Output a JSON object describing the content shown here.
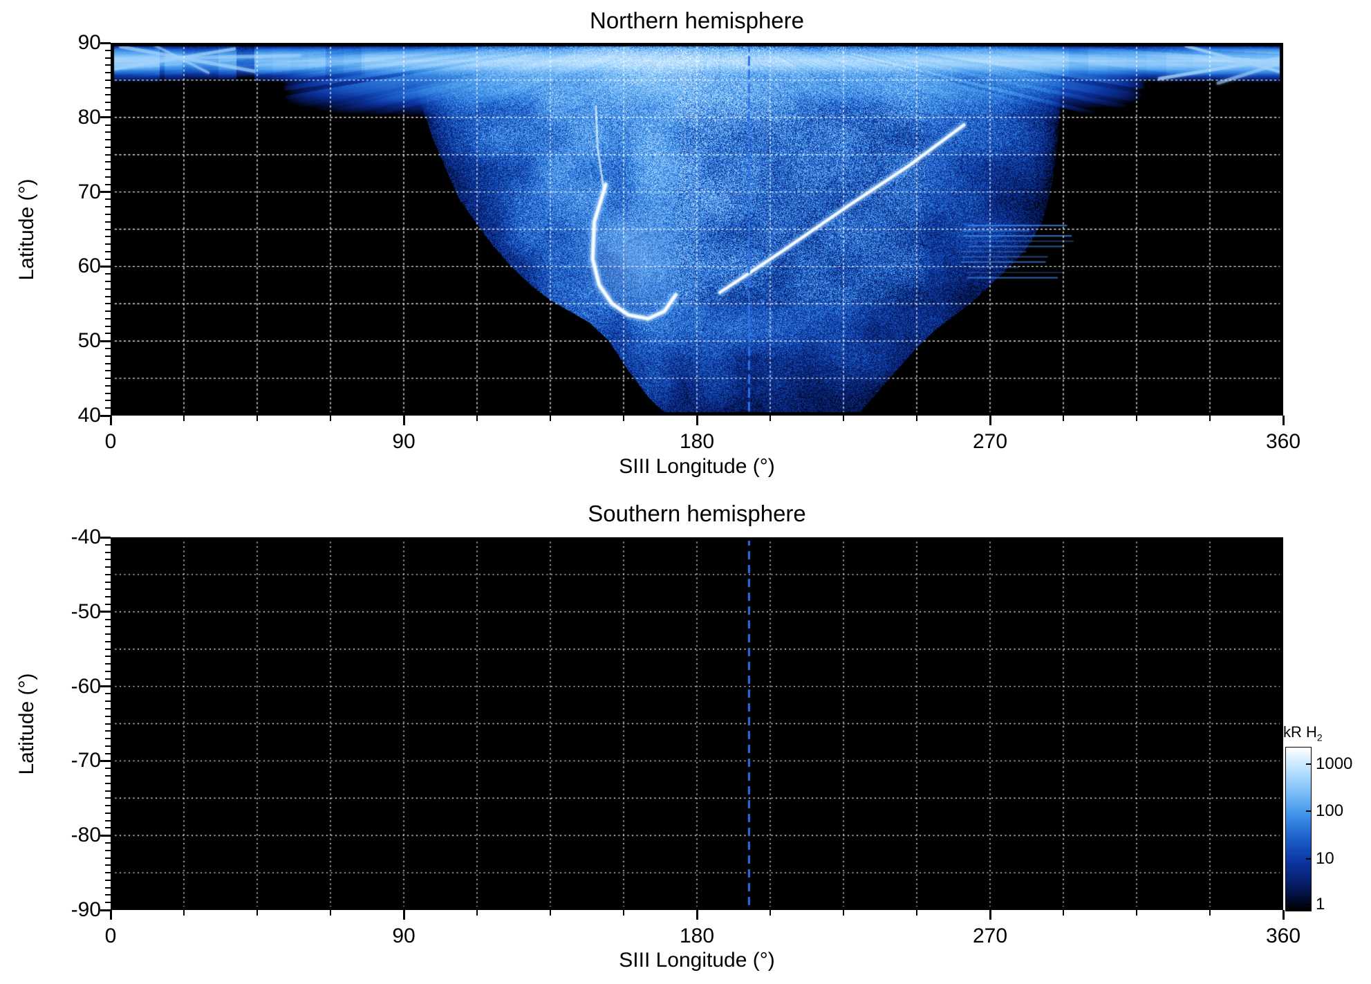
{
  "figure": {
    "panels": [
      {
        "id": "north",
        "title": "Northern hemisphere",
        "ylabel": "Latitude (°)",
        "xlabel": "SIII Longitude (°)",
        "yticks": [
          "90",
          "80",
          "70",
          "60",
          "50",
          "40"
        ],
        "xticks": [
          "0",
          "90",
          "180",
          "270",
          "360"
        ]
      },
      {
        "id": "south",
        "title": "Southern hemisphere",
        "ylabel": "Latitude (°)",
        "xlabel": "SIII Longitude (°)",
        "yticks": [
          "-40",
          "-50",
          "-60",
          "-70",
          "-80",
          "-90"
        ],
        "xticks": [
          "0",
          "90",
          "180",
          "270",
          "360"
        ]
      }
    ],
    "colorbar": {
      "label": "kR H",
      "label_subscript": "2",
      "tick_labels": [
        "1000",
        "100",
        "10",
        "1"
      ],
      "scale": "logarithmic",
      "range": [
        1,
        1000
      ],
      "gradient_colors": [
        "#ffffff",
        "#b9e0ff",
        "#79bdf7",
        "#3e90e8",
        "#1b5ec9",
        "#0c35a0",
        "#071f6e",
        "#030f3c",
        "#000000"
      ]
    }
  },
  "chart_data": [
    {
      "type": "heatmap",
      "title": "Northern hemisphere",
      "xlabel": "SIII Longitude (°)",
      "ylabel": "Latitude (°)",
      "xlim": [
        0,
        360
      ],
      "ylim": [
        40,
        90
      ],
      "xticks": [
        0,
        90,
        180,
        270,
        360
      ],
      "yticks": [
        90,
        80,
        70,
        60,
        50,
        40
      ],
      "grid": {
        "x_step_deg": 22.5,
        "y_step_deg": 5,
        "style": "dotted",
        "color": "#ffffff"
      },
      "meridian_line": {
        "longitude_deg": 196,
        "style": "dashed",
        "color": "#2e73e8"
      },
      "intensity_units": "kR H2",
      "intensity_scale": "log",
      "intensity_range_kR": [
        1,
        1000
      ],
      "features": {
        "description": "Diffuse speckled H2 auroral emission spanning ~95°–292° longitude from the pole down to ~40° latitude around 170°–230°; bright main oval arc near 148°–173° longitude at 53°–71° latitude; bright straight arc from (187°,57°) to (262°,79°); bright polar band at ~86°–89° latitude across all longitudes with fan-like streaks converging toward the pole near 187° longitude; faint horizontal streaks near 265°–298° longitude at 59°–65° latitude.",
        "lower_boundary": [
          [
            92,
            87
          ],
          [
            95,
            82
          ],
          [
            99,
            77
          ],
          [
            103,
            73
          ],
          [
            107,
            69
          ],
          [
            112,
            66
          ],
          [
            117,
            63
          ],
          [
            123,
            60
          ],
          [
            129,
            57.5
          ],
          [
            135,
            55.5
          ],
          [
            141,
            54
          ],
          [
            147,
            52.5
          ],
          [
            153,
            50
          ],
          [
            159,
            46
          ],
          [
            165,
            42.5
          ],
          [
            171,
            40
          ],
          [
            229,
            40
          ],
          [
            235,
            43
          ],
          [
            241,
            46
          ],
          [
            247,
            49
          ],
          [
            253,
            51.5
          ],
          [
            259,
            53.5
          ],
          [
            265,
            55.5
          ],
          [
            271,
            58
          ],
          [
            277,
            60.5
          ],
          [
            282,
            63
          ],
          [
            286,
            66
          ],
          [
            289,
            71
          ],
          [
            291,
            78
          ],
          [
            292,
            87
          ]
        ],
        "intensity_profile": [
          [
            92,
            6
          ],
          [
            100,
            20
          ],
          [
            110,
            40
          ],
          [
            120,
            60
          ],
          [
            132,
            85
          ],
          [
            144,
            105
          ],
          [
            156,
            118
          ],
          [
            168,
            118
          ],
          [
            180,
            95
          ],
          [
            192,
            75
          ],
          [
            204,
            62
          ],
          [
            216,
            55
          ],
          [
            228,
            52
          ],
          [
            240,
            48
          ],
          [
            252,
            40
          ],
          [
            262,
            33
          ],
          [
            272,
            26
          ],
          [
            280,
            18
          ],
          [
            286,
            12
          ],
          [
            292,
            6
          ]
        ],
        "polar_band": {
          "lat_center": 87.6,
          "lat_sigma": 1.2,
          "amp": 380
        },
        "fan": {
          "apex_lon": 187,
          "apex_lat": 93,
          "lon_range": [
            52,
            318
          ],
          "lat_center": 84.4,
          "amp": 62
        },
        "kidney_arc": [
          [
            152,
            71
          ],
          [
            148.5,
            66
          ],
          [
            148,
            61
          ],
          [
            150,
            57.5
          ],
          [
            154,
            55
          ],
          [
            159,
            53.5
          ],
          [
            165,
            53
          ],
          [
            170,
            54
          ],
          [
            173.5,
            56.2
          ]
        ],
        "arc_upstreak": [
          [
            151.5,
            70
          ],
          [
            149.5,
            76
          ],
          [
            149,
            81.5
          ]
        ],
        "diagonal_arc": [
          [
            187,
            56.5
          ],
          [
            206,
            62
          ],
          [
            226,
            68
          ],
          [
            245,
            73.5
          ],
          [
            262,
            79
          ]
        ],
        "arc_glow": {
          "center": [
            160,
            61
          ],
          "radius_px": 85
        },
        "right_streak_patch": {
          "lon_range": [
            264,
            298
          ],
          "lat_range": [
            58.5,
            65.5
          ]
        },
        "corner_streaks_left": [
          [
            [
              1,
              86.5
            ],
            [
              38,
              89.2
            ]
          ],
          [
            [
              3,
              89.5
            ],
            [
              44,
              86.2
            ]
          ],
          [
            [
              0,
              87.8
            ],
            [
              58,
              88.3
            ]
          ],
          [
            [
              12,
              90
            ],
            [
              30,
              86
            ]
          ]
        ],
        "corner_streaks_right": [
          [
            [
              322,
              85.2
            ],
            [
              360,
              88
            ]
          ],
          [
            [
              330,
              89.6
            ],
            [
              360,
              86
            ]
          ],
          [
            [
              340,
              84.6
            ],
            [
              360,
              87.4
            ]
          ]
        ]
      }
    },
    {
      "type": "heatmap",
      "title": "Southern hemisphere",
      "xlabel": "SIII Longitude (°)",
      "ylabel": "Latitude (°)",
      "xlim": [
        0,
        360
      ],
      "ylim": [
        -90,
        -40
      ],
      "xticks": [
        0,
        90,
        180,
        270,
        360
      ],
      "yticks": [
        -40,
        -50,
        -60,
        -70,
        -80,
        -90
      ],
      "grid": {
        "x_step_deg": 22.5,
        "y_step_deg": 5,
        "style": "dotted",
        "color": "#ffffff"
      },
      "meridian_line": {
        "longitude_deg": 196,
        "style": "dashed",
        "color": "#2e73e8"
      },
      "intensity_units": "kR H2",
      "intensity_scale": "log",
      "intensity_range_kR": [
        1,
        1000
      ],
      "features": {
        "description": "No detectable emission: entire map at or below ~1 kR (black)."
      }
    }
  ]
}
